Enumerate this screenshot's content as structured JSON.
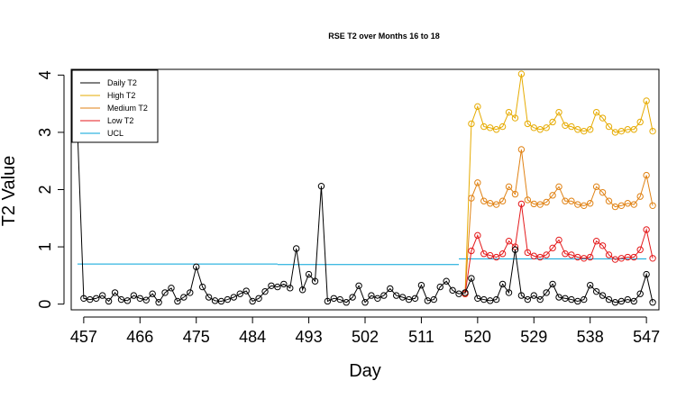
{
  "chart_data": {
    "type": "line",
    "title": "RSE T2 over Months 16 to 18",
    "xlabel": "Day",
    "ylabel": "T2 Value",
    "xlim": [
      455,
      549
    ],
    "ylim": [
      -0.1,
      4.1
    ],
    "x_ticks": [
      457,
      466,
      475,
      484,
      493,
      502,
      511,
      520,
      529,
      538,
      547
    ],
    "y_ticks": [
      0,
      1,
      2,
      3,
      4
    ],
    "y_tick_labels": [
      "0",
      "1",
      "2",
      "3",
      "4"
    ],
    "grid": false,
    "legend_position": "top-left",
    "legend": [
      {
        "label": "Daily T2",
        "color": "#000000"
      },
      {
        "label": "High T2",
        "color": "#E6AB02"
      },
      {
        "label": "Medium T2",
        "color": "#E08214"
      },
      {
        "label": "Low T2",
        "color": "#E41A1C"
      },
      {
        "label": "UCL",
        "color": "#00A3D9"
      }
    ],
    "series": [
      {
        "name": "Daily T2",
        "color": "#000000",
        "x_start": 456,
        "values": [
          3.05,
          0.1,
          0.08,
          0.1,
          0.15,
          0.05,
          0.2,
          0.08,
          0.06,
          0.15,
          0.1,
          0.07,
          0.18,
          0.03,
          0.2,
          0.28,
          0.05,
          0.12,
          0.2,
          0.65,
          0.3,
          0.12,
          0.06,
          0.05,
          0.08,
          0.12,
          0.18,
          0.23,
          0.05,
          0.1,
          0.22,
          0.32,
          0.3,
          0.35,
          0.28,
          0.97,
          0.25,
          0.52,
          0.4,
          2.06,
          0.05,
          0.1,
          0.08,
          0.03,
          0.12,
          0.32,
          0.03,
          0.15,
          0.1,
          0.15,
          0.27,
          0.15,
          0.12,
          0.08,
          0.1,
          0.33,
          0.06,
          0.08,
          0.3,
          0.4,
          0.24,
          0.18,
          0.2,
          0.45,
          0.1,
          0.08,
          0.06,
          0.08,
          0.35,
          0.2,
          0.95,
          0.15,
          0.08,
          0.15,
          0.08,
          0.2,
          0.35,
          0.12,
          0.1,
          0.08,
          0.05,
          0.08,
          0.33,
          0.22,
          0.15,
          0.08,
          0.03,
          0.05,
          0.08,
          0.05,
          0.18,
          0.52,
          0.03
        ]
      },
      {
        "name": "High T2",
        "color": "#E6AB02",
        "x_start": 518,
        "values": [
          0.18,
          3.15,
          3.45,
          3.1,
          3.08,
          3.05,
          3.1,
          3.35,
          3.25,
          4.02,
          3.15,
          3.08,
          3.05,
          3.08,
          3.18,
          3.35,
          3.12,
          3.1,
          3.05,
          3.02,
          3.05,
          3.35,
          3.25,
          3.1,
          3.0,
          3.02,
          3.05,
          3.05,
          3.18,
          3.55,
          3.02
        ]
      },
      {
        "name": "Medium T2",
        "color": "#E08214",
        "x_start": 518,
        "values": [
          0.18,
          1.85,
          2.12,
          1.8,
          1.76,
          1.74,
          1.8,
          2.05,
          1.92,
          2.7,
          1.82,
          1.75,
          1.74,
          1.78,
          1.9,
          2.05,
          1.8,
          1.8,
          1.74,
          1.72,
          1.76,
          2.05,
          1.95,
          1.8,
          1.7,
          1.72,
          1.76,
          1.74,
          1.88,
          2.25,
          1.72
        ]
      },
      {
        "name": "Low T2",
        "color": "#E41A1C",
        "x_start": 518,
        "values": [
          0.18,
          0.93,
          1.2,
          0.88,
          0.85,
          0.82,
          0.88,
          1.1,
          1.0,
          1.75,
          0.9,
          0.84,
          0.82,
          0.86,
          0.98,
          1.12,
          0.88,
          0.86,
          0.82,
          0.8,
          0.82,
          1.1,
          1.02,
          0.86,
          0.78,
          0.8,
          0.82,
          0.82,
          0.95,
          1.3,
          0.8
        ]
      }
    ],
    "ucl_segments": [
      {
        "x": [
          456,
          488
        ],
        "y": [
          0.7,
          0.7
        ]
      },
      {
        "x": [
          488,
          517
        ],
        "y": [
          0.69,
          0.69
        ]
      },
      {
        "x": [
          517,
          547
        ],
        "y": [
          0.79,
          0.79
        ]
      }
    ],
    "ucl_color": "#00A3D9"
  }
}
